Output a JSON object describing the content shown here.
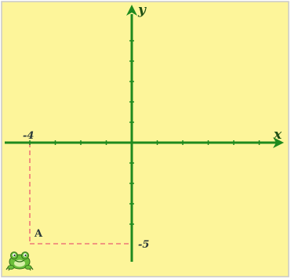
{
  "diagram": {
    "x_axis_label": "x",
    "y_axis_label": "y",
    "x_tick_label": "-4",
    "y_tick_label": "-5",
    "point": {
      "name": "A",
      "x": -4,
      "y": -5
    },
    "icon": "frog-icon"
  },
  "colors": {
    "background": "#fdf59a",
    "frame": "#c9c9c9",
    "axis": "#1e8a1e",
    "guide": "#ee7777"
  }
}
